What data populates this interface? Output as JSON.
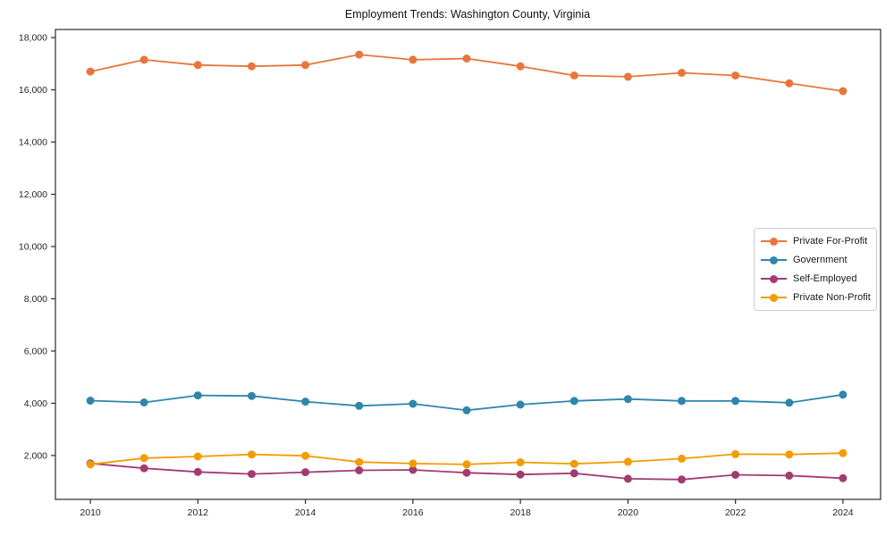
{
  "chart_data": {
    "type": "line",
    "title": "Employment Trends: Washington County, Virginia",
    "x": [
      2010,
      2011,
      2012,
      2013,
      2014,
      2015,
      2016,
      2017,
      2018,
      2019,
      2020,
      2021,
      2022,
      2023,
      2024
    ],
    "series": [
      {
        "name": "Private For-Profit",
        "color": "#E8763C",
        "values": [
          16700,
          17150,
          16950,
          16900,
          16950,
          17350,
          17150,
          17200,
          16900,
          16550,
          16500,
          16650,
          16550,
          16250,
          15950
        ]
      },
      {
        "name": "Government",
        "color": "#2E86AB",
        "values": [
          4100,
          4030,
          4300,
          4280,
          4060,
          3900,
          3980,
          3730,
          3950,
          4090,
          4160,
          4090,
          4090,
          4020,
          4330
        ]
      },
      {
        "name": "Self-Employed",
        "color": "#A23B72",
        "values": [
          1700,
          1510,
          1370,
          1290,
          1360,
          1430,
          1450,
          1340,
          1270,
          1320,
          1110,
          1080,
          1260,
          1230,
          1130
        ]
      },
      {
        "name": "Private Non-Profit",
        "color": "#F29C00",
        "values": [
          1660,
          1900,
          1960,
          2040,
          1990,
          1750,
          1690,
          1660,
          1740,
          1680,
          1760,
          1880,
          2050,
          2040,
          2090
        ]
      }
    ],
    "xticks": [
      2010,
      2012,
      2014,
      2016,
      2018,
      2020,
      2022,
      2024
    ],
    "xtick_labels": [
      "2010",
      "2012",
      "2014",
      "2016",
      "2018",
      "2020",
      "2022",
      "2024"
    ],
    "yticks": [
      2000,
      4000,
      6000,
      8000,
      10000,
      12000,
      14000,
      16000,
      18000
    ],
    "ytick_labels": [
      "2,000",
      "4,000",
      "6,000",
      "8,000",
      "10,000",
      "12,000",
      "14,000",
      "16,000",
      "18,000"
    ],
    "xlim": [
      2009.35,
      2024.7
    ],
    "ylim": [
      320,
      18310
    ],
    "grid": false,
    "legend_position": "center-right",
    "axis_color": "#2b2b2b",
    "marker_radius": 4.5,
    "line_width": 1.8
  }
}
